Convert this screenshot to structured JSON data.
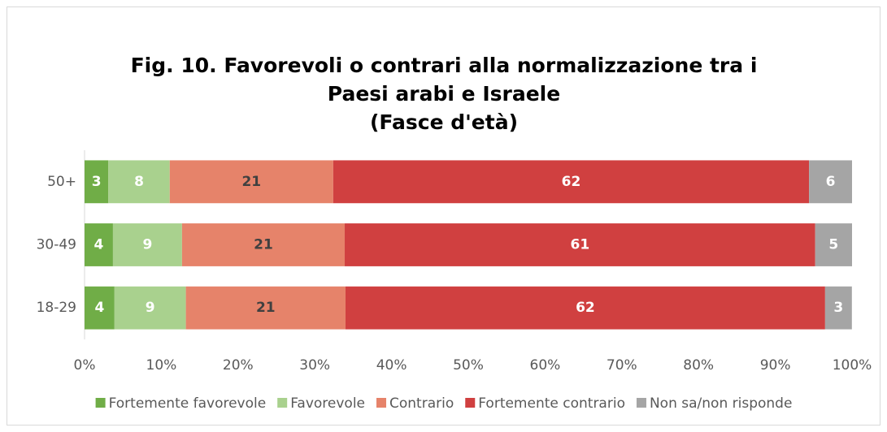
{
  "chart_data": {
    "type": "stacked_barh",
    "title": [
      "Fig. 10. Favorevoli o contrari alla normalizzazione tra i",
      "Paesi arabi e Israele",
      "(Fasce d'età)"
    ],
    "categories": [
      "50+",
      "30-49",
      "18-29"
    ],
    "series": [
      {
        "name": "Fortemente favorevole",
        "color": "#70ad47",
        "label_color": "#ffffff",
        "values": [
          3.1,
          3.7,
          3.9
        ],
        "value_labels": [
          "3",
          "4",
          "4"
        ]
      },
      {
        "name": "Favorevole",
        "color": "#a9d18e",
        "label_color": "#ffffff",
        "values": [
          8.0,
          9.0,
          9.3
        ],
        "value_labels": [
          "8",
          "9",
          "9"
        ]
      },
      {
        "name": "Contrario",
        "color": "#e6836a",
        "label_color": "#404040",
        "values": [
          21.3,
          21.2,
          20.8
        ],
        "value_labels": [
          "21",
          "21",
          "21"
        ]
      },
      {
        "name": "Fortemente contrario",
        "color": "#d04040",
        "label_color": "#ffffff",
        "values": [
          62.0,
          61.3,
          62.49
        ],
        "value_labels": [
          "62",
          "61",
          "62"
        ]
      },
      {
        "name": "Non sa/non risponde",
        "color": "#a5a5a5",
        "label_color": "#ffffff",
        "values": [
          5.6,
          4.8,
          3.49
        ],
        "value_labels": [
          "6",
          "5",
          "3"
        ]
      }
    ],
    "xlim": [
      0,
      100
    ],
    "xticks": [
      {
        "value": 0,
        "label": "0%"
      },
      {
        "value": 10,
        "label": "10%"
      },
      {
        "value": 20,
        "label": "20%"
      },
      {
        "value": 30,
        "label": "30%"
      },
      {
        "value": 40,
        "label": "40%"
      },
      {
        "value": 50,
        "label": "50%"
      },
      {
        "value": 60,
        "label": "60%"
      },
      {
        "value": 70,
        "label": "70%"
      },
      {
        "value": 80,
        "label": "80%"
      },
      {
        "value": 90,
        "label": "90%"
      },
      {
        "value": 100,
        "label": "100%"
      }
    ],
    "legend": "bottom"
  }
}
